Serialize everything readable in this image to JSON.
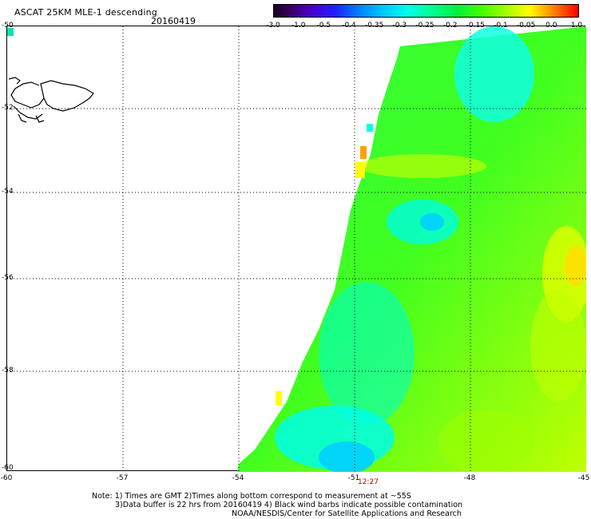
{
  "title": "ASCAT 25KM MLE-1 descending",
  "date": "20160419",
  "colorbar": {
    "ticks": [
      "-3.0",
      "-1.0",
      "-0.5",
      "-0.4",
      "-0.35",
      "-0.3",
      "-0.25",
      "-0.2",
      "-0.15",
      "-0.1",
      "-0.05",
      "0.0",
      "1.0"
    ],
    "colors": [
      "#1a0022",
      "#3a0068",
      "#4b00c8",
      "#2020ff",
      "#0080ff",
      "#00c8ff",
      "#00ffe8",
      "#00ff90",
      "#00f040",
      "#40ff00",
      "#a0ff00",
      "#ffff00",
      "#ffa000",
      "#ff0000"
    ]
  },
  "map": {
    "lat_labels": [
      "-50",
      "-52",
      "-54",
      "-56",
      "-58",
      "-60"
    ],
    "lon_labels": [
      "-60",
      "-57",
      "-54",
      "-51",
      "-48",
      "-45"
    ],
    "grid": true,
    "swath_time": "12:27",
    "land": "Falkland Islands coastline outline"
  },
  "notes": {
    "line1": "Note: 1) Times are GMT 2)Times along bottom correspond to measurement at ~55S",
    "line2": "3)Data buffer is 22 hrs from 20160419 4) Black wind barbs indicate possible contamination",
    "line3": "NOAA/NESDIS/Center for Satellite Applications and Research"
  }
}
